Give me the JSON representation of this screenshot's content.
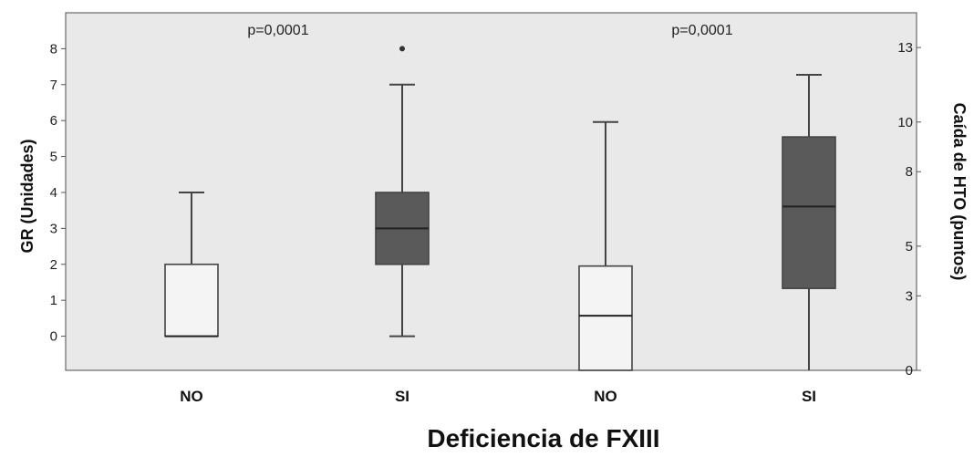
{
  "chart_data": {
    "type": "boxplot",
    "title": "",
    "xlabel": "Deficiencia de FXIII",
    "categories": [
      "NO",
      "SI",
      "NO",
      "SI"
    ],
    "annotations": [
      "p=0,0001",
      "p=0,0001"
    ],
    "left_axis": {
      "label": "GR (Unidades)",
      "ticks": [
        0,
        1,
        2,
        3,
        4,
        5,
        6,
        7,
        8
      ],
      "ylim": [
        -0.95,
        9.0
      ]
    },
    "right_axis": {
      "label": "Caída de HTO (puntos)",
      "ticks": [
        0,
        3,
        5,
        8,
        10,
        13
      ],
      "ylim": [
        0,
        14.4
      ]
    },
    "series": [
      {
        "axis": "left",
        "boxes": [
          {
            "category": "NO",
            "whisker_low": 0,
            "q1": 0,
            "median": 0,
            "q3": 2,
            "whisker_high": 4,
            "outliers": [],
            "fill": "#f4f4f4"
          },
          {
            "category": "SI",
            "whisker_low": 0,
            "q1": 2,
            "median": 3,
            "q3": 4,
            "whisker_high": 7,
            "outliers": [
              8
            ],
            "fill": "#5a5a5a"
          }
        ]
      },
      {
        "axis": "right",
        "boxes": [
          {
            "category": "NO",
            "whisker_low": 0,
            "q1": 0,
            "median": 2.2,
            "q3": 4.2,
            "whisker_high": 10.0,
            "outliers": [],
            "fill": "#f4f4f4"
          },
          {
            "category": "SI",
            "whisker_low": 0,
            "q1": 3.3,
            "median": 6.6,
            "q3": 9.4,
            "whisker_high": 11.9,
            "outliers": [],
            "fill": "#5a5a5a"
          }
        ]
      }
    ],
    "colors": {
      "plot_bg": "#e9e9e9",
      "box_light": "#f4f4f4",
      "box_dark": "#5a5a5a",
      "line": "#444444"
    }
  }
}
